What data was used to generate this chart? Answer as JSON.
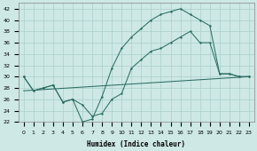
{
  "xlabel": "Humidex (Indice chaleur)",
  "ylabel": "",
  "bg_color": "#cde8e5",
  "line_color": "#2e6e65",
  "grid_color": "#aacfcc",
  "xlim": [
    -0.5,
    23.5
  ],
  "ylim": [
    22,
    43
  ],
  "yticks": [
    22,
    24,
    26,
    28,
    30,
    32,
    34,
    36,
    38,
    40,
    42
  ],
  "xticks": [
    0,
    1,
    2,
    3,
    4,
    5,
    6,
    7,
    8,
    9,
    10,
    11,
    12,
    13,
    14,
    15,
    16,
    17,
    18,
    19,
    20,
    21,
    22,
    23
  ],
  "line1_x": [
    0,
    1,
    2,
    3,
    4,
    5,
    6,
    7,
    8,
    9,
    10,
    11,
    12,
    13,
    14,
    15,
    16,
    17,
    18,
    19,
    20,
    21,
    22,
    23
  ],
  "line1_y": [
    30,
    27.5,
    28,
    28.5,
    25.5,
    26,
    22,
    22.5,
    26.5,
    31.5,
    35,
    37,
    38.5,
    40,
    41,
    41.5,
    42,
    41,
    40,
    39,
    30.5,
    30.5,
    30,
    30
  ],
  "line2_x": [
    0,
    1,
    2,
    3,
    4,
    5,
    6,
    7,
    8,
    9,
    10,
    11,
    12,
    13,
    14,
    15,
    16,
    17,
    18,
    19,
    20,
    21,
    22,
    23
  ],
  "line2_y": [
    30,
    27.5,
    28,
    28.5,
    25.5,
    26,
    25,
    23,
    23.5,
    26,
    27,
    31.5,
    33,
    34.5,
    35,
    36,
    37,
    38,
    36,
    36,
    30.5,
    30.5,
    30,
    30
  ],
  "line3_x": [
    0,
    23
  ],
  "line3_y": [
    27.5,
    30
  ]
}
